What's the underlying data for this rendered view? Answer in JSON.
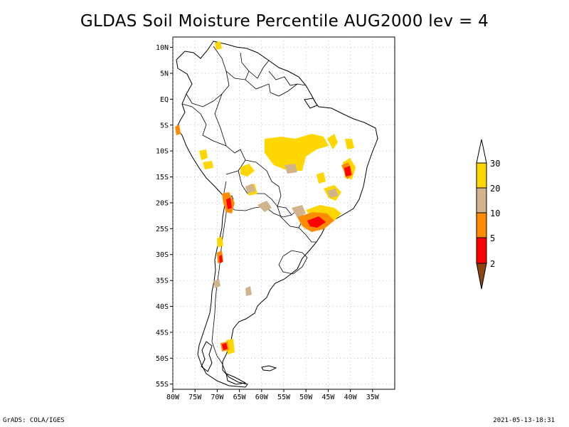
{
  "title": "GLDAS Soil Moisture Percentile AUG2000 lev = 4",
  "chart_data": {
    "type": "heatmap",
    "title": "GLDAS Soil Moisture Percentile AUG2000 lev = 4",
    "xlim": [
      -80,
      -30
    ],
    "ylim": [
      -56,
      12
    ],
    "lat_ticks": [
      "10N",
      "5N",
      "EQ",
      "5S",
      "10S",
      "15S",
      "20S",
      "25S",
      "30S",
      "35S",
      "40S",
      "45S",
      "50S",
      "55S"
    ],
    "lon_ticks": [
      "80W",
      "75W",
      "70W",
      "65W",
      "60W",
      "55W",
      "50W",
      "45W",
      "40W",
      "35W"
    ],
    "grid": true,
    "legend_placement": "right",
    "colorbar": {
      "labels": [
        "2",
        "5",
        "10",
        "20",
        "30"
      ],
      "colors": [
        "#8b4513",
        "#ff0000",
        "#ff8c00",
        "#d2b48c",
        "#ffd700",
        "#ffffff"
      ]
    }
  },
  "footer": {
    "left": "GrADS: COLA/IGES",
    "right": "2021-05-13-18:31"
  }
}
